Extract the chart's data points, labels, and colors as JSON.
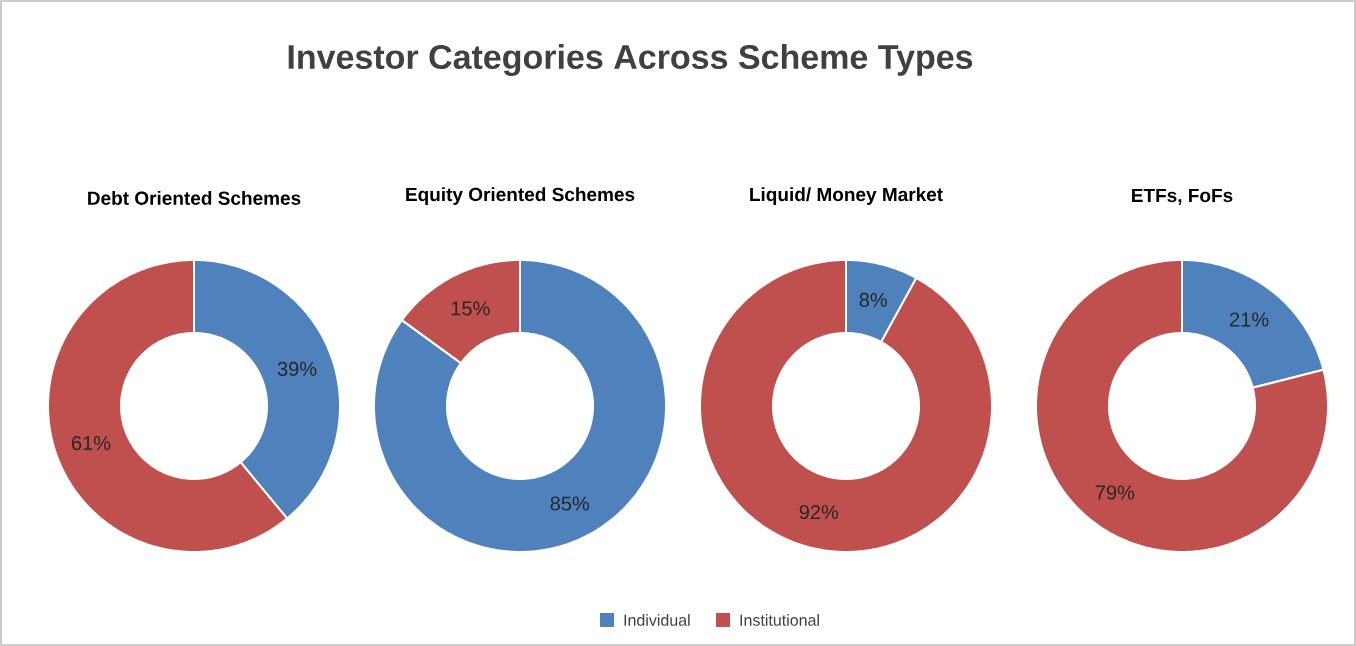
{
  "chart_data": [
    {
      "type": "donut",
      "title": "Debt Oriented Schemes",
      "annotations": [
        "Investor Categories Across Scheme Types"
      ],
      "legend": "bottom",
      "categories": [
        "Individual",
        "Institutional"
      ],
      "values": [
        39,
        61
      ],
      "value_labels": [
        "39%",
        "61%"
      ],
      "colors": [
        "#4f81bd",
        "#c0504d"
      ]
    },
    {
      "type": "donut",
      "title": "Equity Oriented Schemes",
      "values": [
        85,
        15
      ],
      "value_labels": [
        "85%",
        "15%"
      ],
      "colors": [
        "#4f81bd",
        "#c0504d"
      ]
    },
    {
      "type": "donut",
      "title": "Liquid/ Money Market",
      "values": [
        8,
        92
      ],
      "value_labels": [
        "8%",
        "92%"
      ],
      "colors": [
        "#4f81bd",
        "#c0504d"
      ]
    },
    {
      "type": "donut",
      "title": "ETFs, FoFs",
      "values": [
        21,
        79
      ],
      "value_labels": [
        "21%",
        "79%"
      ],
      "colors": [
        "#4f81bd",
        "#c0504d"
      ]
    }
  ]
}
